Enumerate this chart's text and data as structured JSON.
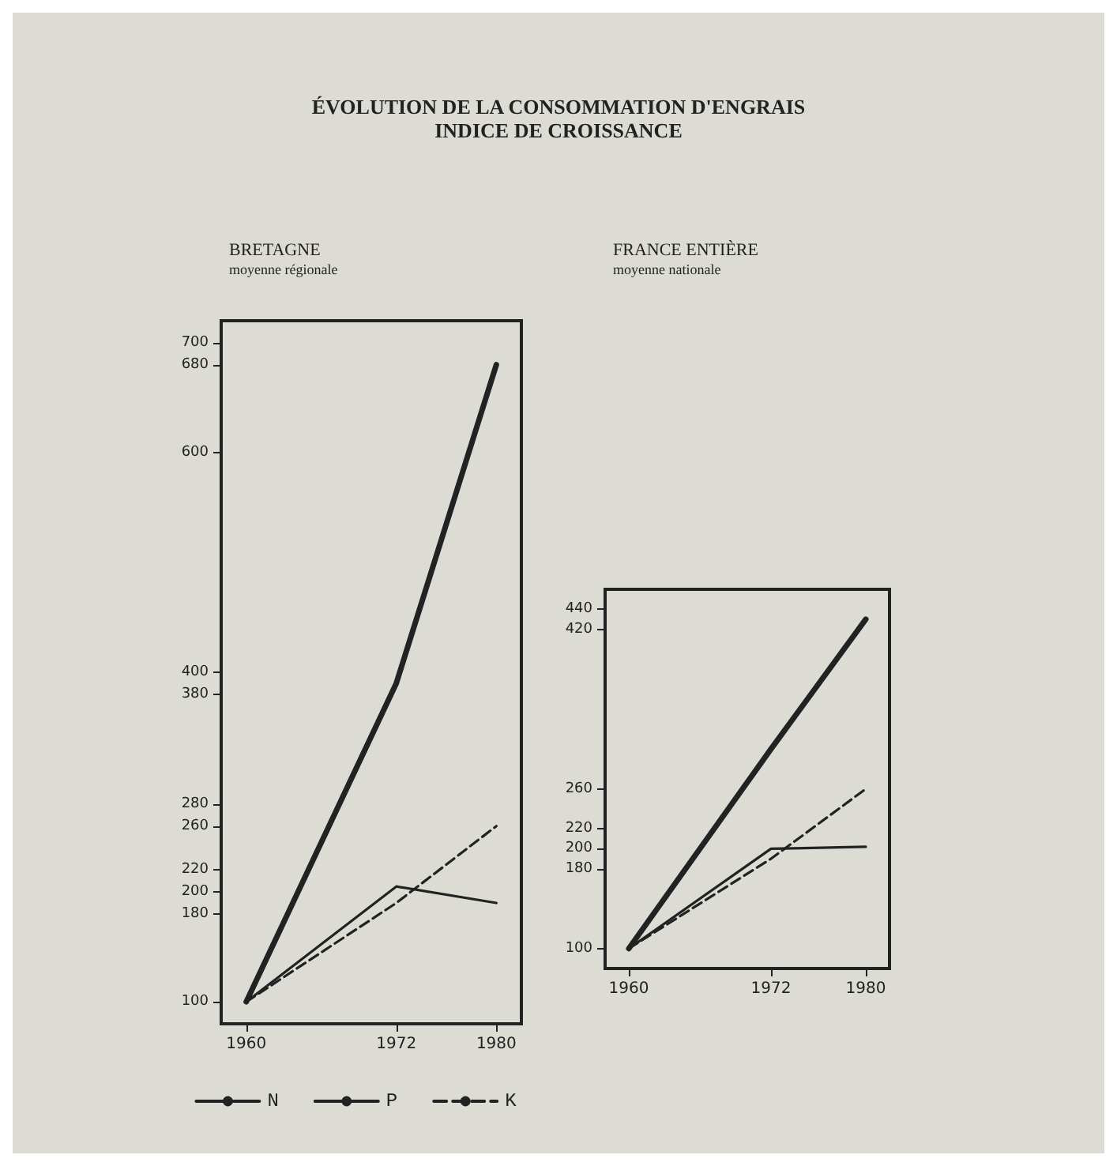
{
  "chart_data": [
    {
      "type": "line",
      "title": "BRETAGNE",
      "subtitle": "moyenne régionale",
      "annotations": [
        "ÉVOLUTION DE LA CONSOMMATION D'ENGRAIS",
        "INDICE DE CROISSANCE"
      ],
      "x": [
        1960,
        1972,
        1980
      ],
      "xlim": [
        1958,
        1982
      ],
      "xticks": [
        1960,
        1972,
        1980
      ],
      "ylim": [
        80,
        720
      ],
      "yticks": [
        100,
        180,
        200,
        220,
        260,
        280,
        380,
        400,
        600,
        680,
        700
      ],
      "series": [
        {
          "name": "N",
          "color": "#222222",
          "line_style": "solid",
          "values": [
            100,
            390,
            680
          ]
        },
        {
          "name": "P",
          "color": "#222222",
          "line_style": "solid",
          "values": [
            100,
            205,
            190
          ]
        },
        {
          "name": "K",
          "color": "#222222",
          "line_style": "dashed",
          "values": [
            100,
            190,
            260
          ]
        }
      ],
      "marker": "none",
      "grid": false,
      "legend": "bottom"
    },
    {
      "type": "line",
      "title": "FRANCE ENTIÈRE",
      "subtitle": "moyenne nationale",
      "x": [
        1960,
        1972,
        1980
      ],
      "xlim": [
        1958,
        1982
      ],
      "xticks": [
        1960,
        1972,
        1980
      ],
      "ylim": [
        80,
        460
      ],
      "yticks": [
        100,
        180,
        200,
        220,
        260,
        420,
        440
      ],
      "series": [
        {
          "color": "#222222",
          "line_style": "solid",
          "values": [
            100,
            300,
            430
          ]
        },
        {
          "color": "#222222",
          "line_style": "solid",
          "values": [
            100,
            200,
            202
          ]
        },
        {
          "color": "#222222",
          "line_style": "dashed",
          "values": [
            100,
            190,
            260
          ]
        }
      ],
      "marker": "none",
      "grid": false,
      "legend": false
    }
  ]
}
